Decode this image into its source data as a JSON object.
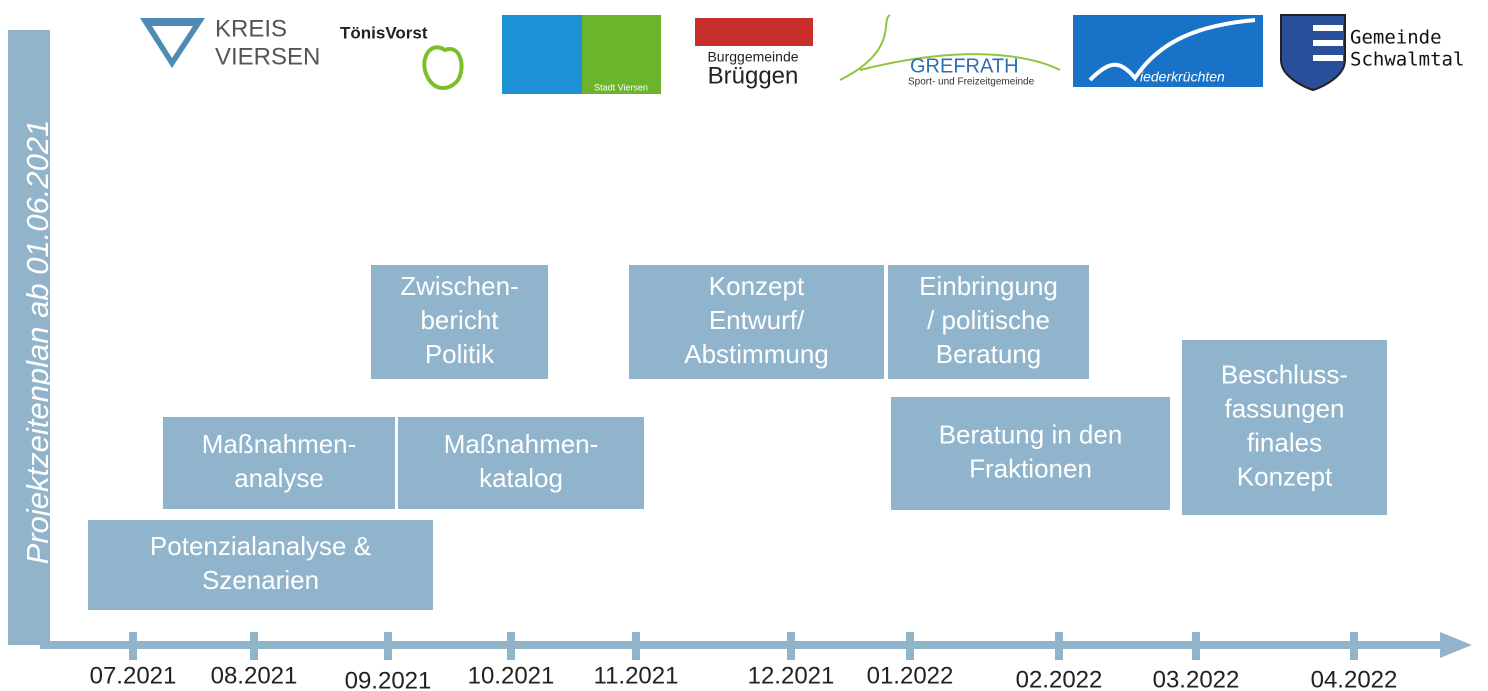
{
  "title": "Projektzeitenplan ab 01.06.2021",
  "logos": {
    "kreis_viersen": [
      "KREIS",
      "VIERSEN"
    ],
    "toenisvorst": "TönisVorst",
    "stadt_viersen": "Stadt Viersen",
    "brueggen": [
      "Burggemeinde",
      "Brüggen"
    ],
    "grefrath": [
      "GREFRATH",
      "Sport- und Freizeitgemeinde"
    ],
    "niederkruechten": "iederkrüchten",
    "schwalmtal": [
      "Gemeinde",
      "Schwalmtal"
    ]
  },
  "tasks": [
    {
      "lines": [
        "Potenzialanalyse &",
        "Szenarien"
      ]
    },
    {
      "lines": [
        "Maßnahmen-",
        "analyse"
      ]
    },
    {
      "lines": [
        "Maßnahmen-",
        "katalog"
      ]
    },
    {
      "lines": [
        "Zwischen-",
        "bericht",
        "Politik"
      ]
    },
    {
      "lines": [
        "Konzept",
        "Entwurf/",
        "Abstimmung"
      ]
    },
    {
      "lines": [
        "Einbringung",
        "/ politische",
        "Beratung"
      ]
    },
    {
      "lines": [
        "Beratung in den",
        "Fraktionen"
      ]
    },
    {
      "lines": [
        "Beschluss-",
        "fassungen",
        "finales",
        "Konzept"
      ]
    }
  ],
  "axis_labels": [
    "07.2021",
    "08.2021",
    "09.2021",
    "10.2021",
    "11.2021",
    "12.2021",
    "01.2022",
    "02.2022",
    "03.2022",
    "04.2022"
  ]
}
